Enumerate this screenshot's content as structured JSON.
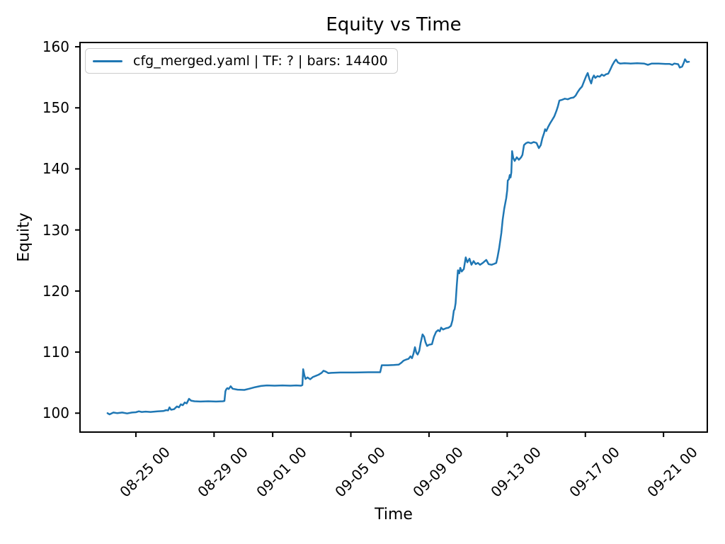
{
  "figure": {
    "title": "Equity vs Time",
    "xlabel": "Time",
    "ylabel": "Equity",
    "legend": {
      "label": "cfg_merged.yaml | TF: ? | bars: 14400",
      "line_color": "#1f77b4"
    }
  },
  "chart_data": {
    "type": "line",
    "title": "Equity vs Time",
    "xlabel": "Time",
    "ylabel": "Equity",
    "grid": false,
    "legend_position": "upper left",
    "x_axis_unit": "days relative to 08-25 00:00",
    "xlim": [
      -2.86,
      29.24
    ],
    "ylim": [
      96.9,
      160.7
    ],
    "x_ticks": [
      {
        "t": 0,
        "label": "08-25 00"
      },
      {
        "t": 4,
        "label": "08-29 00"
      },
      {
        "t": 7,
        "label": "09-01 00"
      },
      {
        "t": 11,
        "label": "09-05 00"
      },
      {
        "t": 15,
        "label": "09-09 00"
      },
      {
        "t": 19,
        "label": "09-13 00"
      },
      {
        "t": 23,
        "label": "09-17 00"
      },
      {
        "t": 27,
        "label": "09-21 00"
      }
    ],
    "y_ticks": [
      100,
      110,
      120,
      130,
      140,
      150,
      160
    ],
    "series": [
      {
        "name": "cfg_merged.yaml | TF: ? | bars: 14400",
        "color": "#1f77b4",
        "points": [
          [
            -1.45,
            100.0
          ],
          [
            -1.35,
            99.8
          ],
          [
            -1.15,
            100.1
          ],
          [
            -0.95,
            100.0
          ],
          [
            -0.7,
            100.1
          ],
          [
            -0.45,
            99.95
          ],
          [
            -0.2,
            100.1
          ],
          [
            0.0,
            100.15
          ],
          [
            0.15,
            100.3
          ],
          [
            0.3,
            100.2
          ],
          [
            0.5,
            100.25
          ],
          [
            0.75,
            100.2
          ],
          [
            1.1,
            100.3
          ],
          [
            1.4,
            100.35
          ],
          [
            1.55,
            100.5
          ],
          [
            1.65,
            100.45
          ],
          [
            1.72,
            100.95
          ],
          [
            1.8,
            100.55
          ],
          [
            1.95,
            100.65
          ],
          [
            2.1,
            101.1
          ],
          [
            2.2,
            100.95
          ],
          [
            2.3,
            101.45
          ],
          [
            2.4,
            101.3
          ],
          [
            2.5,
            101.75
          ],
          [
            2.6,
            101.6
          ],
          [
            2.72,
            102.35
          ],
          [
            2.82,
            102.05
          ],
          [
            3.0,
            101.95
          ],
          [
            3.3,
            101.9
          ],
          [
            3.7,
            101.95
          ],
          [
            4.1,
            101.9
          ],
          [
            4.45,
            101.95
          ],
          [
            4.53,
            102.0
          ],
          [
            4.58,
            103.6
          ],
          [
            4.62,
            103.9
          ],
          [
            4.68,
            104.1
          ],
          [
            4.75,
            103.95
          ],
          [
            4.85,
            104.4
          ],
          [
            4.95,
            104.0
          ],
          [
            5.2,
            103.85
          ],
          [
            5.55,
            103.8
          ],
          [
            5.8,
            104.0
          ],
          [
            6.1,
            104.25
          ],
          [
            6.4,
            104.45
          ],
          [
            6.7,
            104.55
          ],
          [
            7.1,
            104.5
          ],
          [
            7.5,
            104.55
          ],
          [
            7.9,
            104.5
          ],
          [
            8.2,
            104.55
          ],
          [
            8.45,
            104.5
          ],
          [
            8.52,
            104.6
          ],
          [
            8.56,
            107.2
          ],
          [
            8.62,
            106.2
          ],
          [
            8.68,
            105.6
          ],
          [
            8.78,
            105.85
          ],
          [
            8.92,
            105.55
          ],
          [
            9.05,
            105.9
          ],
          [
            9.2,
            106.1
          ],
          [
            9.35,
            106.3
          ],
          [
            9.5,
            106.6
          ],
          [
            9.6,
            106.95
          ],
          [
            9.72,
            106.8
          ],
          [
            9.85,
            106.55
          ],
          [
            10.0,
            106.6
          ],
          [
            10.45,
            106.65
          ],
          [
            11.15,
            106.65
          ],
          [
            11.9,
            106.7
          ],
          [
            12.5,
            106.7
          ],
          [
            12.58,
            107.85
          ],
          [
            12.9,
            107.85
          ],
          [
            13.2,
            107.9
          ],
          [
            13.45,
            107.95
          ],
          [
            13.6,
            108.3
          ],
          [
            13.7,
            108.6
          ],
          [
            13.85,
            108.8
          ],
          [
            13.95,
            108.9
          ],
          [
            14.05,
            109.3
          ],
          [
            14.13,
            109.0
          ],
          [
            14.2,
            109.7
          ],
          [
            14.28,
            110.8
          ],
          [
            14.35,
            109.9
          ],
          [
            14.42,
            109.6
          ],
          [
            14.5,
            110.2
          ],
          [
            14.57,
            111.5
          ],
          [
            14.67,
            112.9
          ],
          [
            14.75,
            112.5
          ],
          [
            14.82,
            111.6
          ],
          [
            14.9,
            111.0
          ],
          [
            15.0,
            111.2
          ],
          [
            15.15,
            111.3
          ],
          [
            15.25,
            112.5
          ],
          [
            15.36,
            113.3
          ],
          [
            15.47,
            113.6
          ],
          [
            15.55,
            113.4
          ],
          [
            15.62,
            114.0
          ],
          [
            15.72,
            113.7
          ],
          [
            15.87,
            113.9
          ],
          [
            16.0,
            114.0
          ],
          [
            16.12,
            114.3
          ],
          [
            16.2,
            115.2
          ],
          [
            16.27,
            116.8
          ],
          [
            16.31,
            117.0
          ],
          [
            16.36,
            118.0
          ],
          [
            16.42,
            121.0
          ],
          [
            16.48,
            123.4
          ],
          [
            16.55,
            122.9
          ],
          [
            16.6,
            123.8
          ],
          [
            16.67,
            123.2
          ],
          [
            16.78,
            123.6
          ],
          [
            16.88,
            125.5
          ],
          [
            16.96,
            124.7
          ],
          [
            17.07,
            125.3
          ],
          [
            17.17,
            124.3
          ],
          [
            17.28,
            124.9
          ],
          [
            17.39,
            124.4
          ],
          [
            17.5,
            124.6
          ],
          [
            17.61,
            124.3
          ],
          [
            17.75,
            124.6
          ],
          [
            17.93,
            125.1
          ],
          [
            18.05,
            124.4
          ],
          [
            18.2,
            124.3
          ],
          [
            18.33,
            124.45
          ],
          [
            18.44,
            124.6
          ],
          [
            18.51,
            125.6
          ],
          [
            18.59,
            127.0
          ],
          [
            18.7,
            129.5
          ],
          [
            18.77,
            131.7
          ],
          [
            18.85,
            133.5
          ],
          [
            18.95,
            135.2
          ],
          [
            19.0,
            136.5
          ],
          [
            19.03,
            138.1
          ],
          [
            19.09,
            138.3
          ],
          [
            19.13,
            139.0
          ],
          [
            19.17,
            138.6
          ],
          [
            19.21,
            139.4
          ],
          [
            19.25,
            142.9
          ],
          [
            19.31,
            141.8
          ],
          [
            19.38,
            141.3
          ],
          [
            19.49,
            141.9
          ],
          [
            19.6,
            141.5
          ],
          [
            19.71,
            141.9
          ],
          [
            19.78,
            142.3
          ],
          [
            19.86,
            143.9
          ],
          [
            19.96,
            144.2
          ],
          [
            20.07,
            144.35
          ],
          [
            20.22,
            144.2
          ],
          [
            20.36,
            144.4
          ],
          [
            20.5,
            144.25
          ],
          [
            20.62,
            143.4
          ],
          [
            20.72,
            143.9
          ],
          [
            20.8,
            145.0
          ],
          [
            20.88,
            145.8
          ],
          [
            20.94,
            146.5
          ],
          [
            21.0,
            146.2
          ],
          [
            21.1,
            146.9
          ],
          [
            21.2,
            147.5
          ],
          [
            21.3,
            148.0
          ],
          [
            21.41,
            148.6
          ],
          [
            21.52,
            149.5
          ],
          [
            21.6,
            150.3
          ],
          [
            21.67,
            151.2
          ],
          [
            21.8,
            151.3
          ],
          [
            21.95,
            151.5
          ],
          [
            22.1,
            151.4
          ],
          [
            22.25,
            151.6
          ],
          [
            22.4,
            151.7
          ],
          [
            22.5,
            152.0
          ],
          [
            22.61,
            152.6
          ],
          [
            22.72,
            153.1
          ],
          [
            22.83,
            153.5
          ],
          [
            22.93,
            154.3
          ],
          [
            23.04,
            155.2
          ],
          [
            23.12,
            155.7
          ],
          [
            23.2,
            154.8
          ],
          [
            23.3,
            154.0
          ],
          [
            23.37,
            154.9
          ],
          [
            23.44,
            155.3
          ],
          [
            23.51,
            154.9
          ],
          [
            23.62,
            155.2
          ],
          [
            23.73,
            155.1
          ],
          [
            23.84,
            155.45
          ],
          [
            23.95,
            155.25
          ],
          [
            24.06,
            155.5
          ],
          [
            24.17,
            155.6
          ],
          [
            24.28,
            156.3
          ],
          [
            24.38,
            157.0
          ],
          [
            24.49,
            157.6
          ],
          [
            24.57,
            157.9
          ],
          [
            24.67,
            157.4
          ],
          [
            24.78,
            157.25
          ],
          [
            25.0,
            157.3
          ],
          [
            25.3,
            157.25
          ],
          [
            25.65,
            157.3
          ],
          [
            26.0,
            157.25
          ],
          [
            26.2,
            157.05
          ],
          [
            26.4,
            157.25
          ],
          [
            26.75,
            157.25
          ],
          [
            27.1,
            157.2
          ],
          [
            27.3,
            157.2
          ],
          [
            27.45,
            157.05
          ],
          [
            27.55,
            157.25
          ],
          [
            27.75,
            157.15
          ],
          [
            27.83,
            156.6
          ],
          [
            27.95,
            156.75
          ],
          [
            28.05,
            157.5
          ],
          [
            28.1,
            157.95
          ],
          [
            28.2,
            157.5
          ],
          [
            28.3,
            157.55
          ]
        ]
      }
    ]
  }
}
